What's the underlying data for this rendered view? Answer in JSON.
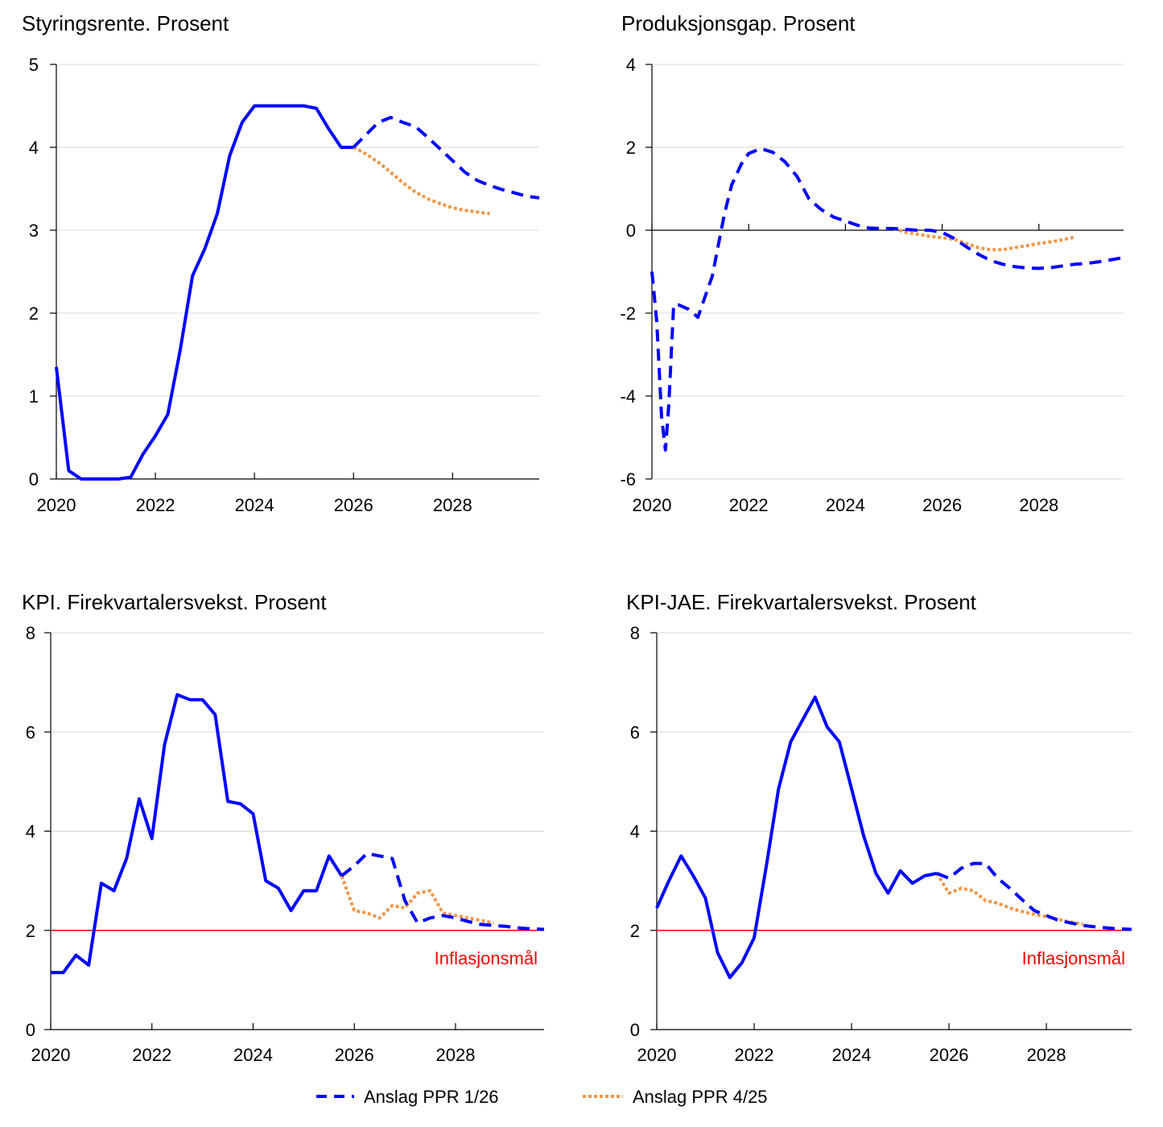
{
  "colors": {
    "actual": "#0000FF",
    "ppr_1_26": "#0000FF",
    "ppr_4_25": "#F0974A",
    "target": "#FF0000",
    "grid": "#D9D9D9"
  },
  "legend": {
    "items": [
      {
        "label": "Anslag PPR 1/26",
        "style": "dashed",
        "color": "#0000FF"
      },
      {
        "label": "Anslag PPR 4/25",
        "style": "dotted",
        "color": "#F0974A"
      }
    ]
  },
  "chart_data": [
    {
      "type": "line",
      "title": "Styringsrente. Prosent",
      "xlabel": "",
      "ylabel": "",
      "xlim": [
        2020,
        2029.75
      ],
      "ylim": [
        0,
        5
      ],
      "yticks": [
        0,
        1,
        2,
        3,
        4,
        5
      ],
      "xticks": [
        2020,
        2022,
        2024,
        2026,
        2028
      ],
      "grid": true,
      "series": [
        {
          "style": "solid",
          "points": [
            [
              2020.0,
              1.35
            ],
            [
              2020.25,
              0.1
            ],
            [
              2020.5,
              0.0
            ],
            [
              2020.75,
              0.0
            ],
            [
              2021.0,
              0.0
            ],
            [
              2021.25,
              0.0
            ],
            [
              2021.5,
              0.02
            ],
            [
              2021.75,
              0.3
            ],
            [
              2022.0,
              0.52
            ],
            [
              2022.25,
              0.78
            ],
            [
              2022.5,
              1.55
            ],
            [
              2022.75,
              2.45
            ],
            [
              2023.0,
              2.78
            ],
            [
              2023.25,
              3.2
            ],
            [
              2023.5,
              3.9
            ],
            [
              2023.75,
              4.3
            ],
            [
              2024.0,
              4.5
            ],
            [
              2024.25,
              4.5
            ],
            [
              2024.5,
              4.5
            ],
            [
              2024.75,
              4.5
            ],
            [
              2025.0,
              4.5
            ],
            [
              2025.25,
              4.47
            ],
            [
              2025.5,
              4.22
            ],
            [
              2025.75,
              4.0
            ],
            [
              2026.0,
              4.0
            ]
          ]
        },
        {
          "style": "dashed",
          "points": [
            [
              2026.0,
              4.0
            ],
            [
              2026.25,
              4.15
            ],
            [
              2026.5,
              4.3
            ],
            [
              2026.75,
              4.36
            ],
            [
              2027.0,
              4.3
            ],
            [
              2027.25,
              4.25
            ],
            [
              2027.5,
              4.12
            ],
            [
              2027.75,
              3.98
            ],
            [
              2028.0,
              3.84
            ],
            [
              2028.25,
              3.7
            ],
            [
              2028.5,
              3.6
            ],
            [
              2028.75,
              3.54
            ],
            [
              2029.0,
              3.49
            ],
            [
              2029.25,
              3.45
            ],
            [
              2029.5,
              3.41
            ],
            [
              2029.75,
              3.39
            ]
          ]
        },
        {
          "style": "dotted",
          "points": [
            [
              2026.0,
              4.0
            ],
            [
              2026.25,
              3.92
            ],
            [
              2026.5,
              3.82
            ],
            [
              2026.75,
              3.7
            ],
            [
              2027.0,
              3.57
            ],
            [
              2027.25,
              3.46
            ],
            [
              2027.5,
              3.38
            ],
            [
              2027.75,
              3.32
            ],
            [
              2028.0,
              3.27
            ],
            [
              2028.25,
              3.24
            ],
            [
              2028.5,
              3.22
            ],
            [
              2028.75,
              3.2
            ]
          ]
        }
      ]
    },
    {
      "type": "line",
      "title": "Produksjonsgap. Prosent",
      "xlabel": "",
      "ylabel": "",
      "xlim": [
        2020,
        2029.75
      ],
      "ylim": [
        -6,
        4
      ],
      "yticks": [
        -6,
        -4,
        -2,
        0,
        2,
        4
      ],
      "xticks": [
        2020,
        2022,
        2024,
        2026,
        2028
      ],
      "grid": true,
      "series": [
        {
          "style": "dashed",
          "points": [
            [
              2020.0,
              -1.0
            ],
            [
              2020.1,
              -2.2
            ],
            [
              2020.2,
              -4.5
            ],
            [
              2020.28,
              -5.3
            ],
            [
              2020.35,
              -4.2
            ],
            [
              2020.45,
              -1.8
            ],
            [
              2020.55,
              -1.8
            ],
            [
              2020.75,
              -1.9
            ],
            [
              2020.95,
              -2.1
            ],
            [
              2021.1,
              -1.6
            ],
            [
              2021.25,
              -1.1
            ],
            [
              2021.4,
              -0.2
            ],
            [
              2021.5,
              0.4
            ],
            [
              2021.65,
              1.1
            ],
            [
              2021.85,
              1.6
            ],
            [
              2022.0,
              1.85
            ],
            [
              2022.25,
              1.97
            ],
            [
              2022.5,
              1.88
            ],
            [
              2022.75,
              1.65
            ],
            [
              2023.0,
              1.3
            ],
            [
              2023.25,
              0.75
            ],
            [
              2023.5,
              0.5
            ],
            [
              2023.75,
              0.32
            ],
            [
              2024.0,
              0.22
            ],
            [
              2024.25,
              0.12
            ],
            [
              2024.5,
              0.05
            ],
            [
              2024.75,
              0.04
            ],
            [
              2025.0,
              0.04
            ],
            [
              2025.25,
              0.02
            ],
            [
              2025.5,
              0.0
            ],
            [
              2025.75,
              0.0
            ],
            [
              2026.0,
              -0.05
            ],
            [
              2026.25,
              -0.2
            ],
            [
              2026.5,
              -0.4
            ],
            [
              2026.75,
              -0.58
            ],
            [
              2027.0,
              -0.73
            ],
            [
              2027.25,
              -0.82
            ],
            [
              2027.5,
              -0.88
            ],
            [
              2027.75,
              -0.91
            ],
            [
              2028.0,
              -0.92
            ],
            [
              2028.25,
              -0.9
            ],
            [
              2028.5,
              -0.86
            ],
            [
              2028.75,
              -0.82
            ],
            [
              2029.0,
              -0.8
            ],
            [
              2029.25,
              -0.76
            ],
            [
              2029.5,
              -0.71
            ],
            [
              2029.75,
              -0.66
            ]
          ]
        },
        {
          "style": "dotted",
          "points": [
            [
              2025.0,
              0.04
            ],
            [
              2025.25,
              -0.05
            ],
            [
              2025.5,
              -0.1
            ],
            [
              2025.75,
              -0.15
            ],
            [
              2026.0,
              -0.18
            ],
            [
              2026.25,
              -0.22
            ],
            [
              2026.5,
              -0.32
            ],
            [
              2026.75,
              -0.42
            ],
            [
              2027.0,
              -0.47
            ],
            [
              2027.25,
              -0.47
            ],
            [
              2027.5,
              -0.42
            ],
            [
              2027.75,
              -0.37
            ],
            [
              2028.0,
              -0.32
            ],
            [
              2028.25,
              -0.28
            ],
            [
              2028.5,
              -0.23
            ],
            [
              2028.75,
              -0.16
            ]
          ]
        }
      ]
    },
    {
      "type": "line",
      "title": "KPI. Firekvartalersvekst. Prosent",
      "xlabel": "",
      "ylabel": "",
      "xlim": [
        2020,
        2029.75
      ],
      "ylim": [
        0,
        8
      ],
      "yticks": [
        0,
        2,
        4,
        6,
        8
      ],
      "xticks": [
        2020,
        2022,
        2024,
        2026,
        2028
      ],
      "grid": true,
      "target": {
        "value": 2,
        "label": "Inflasjonsmål"
      },
      "series": [
        {
          "style": "solid",
          "points": [
            [
              2020.0,
              1.15
            ],
            [
              2020.25,
              1.15
            ],
            [
              2020.5,
              1.5
            ],
            [
              2020.75,
              1.3
            ],
            [
              2021.0,
              2.95
            ],
            [
              2021.25,
              2.8
            ],
            [
              2021.5,
              3.45
            ],
            [
              2021.75,
              4.65
            ],
            [
              2022.0,
              3.85
            ],
            [
              2022.25,
              5.75
            ],
            [
              2022.5,
              6.75
            ],
            [
              2022.75,
              6.65
            ],
            [
              2023.0,
              6.65
            ],
            [
              2023.25,
              6.35
            ],
            [
              2023.5,
              4.6
            ],
            [
              2023.75,
              4.55
            ],
            [
              2024.0,
              4.35
            ],
            [
              2024.25,
              3.0
            ],
            [
              2024.5,
              2.85
            ],
            [
              2024.75,
              2.4
            ],
            [
              2025.0,
              2.8
            ],
            [
              2025.25,
              2.8
            ],
            [
              2025.5,
              3.5
            ],
            [
              2025.75,
              3.1
            ]
          ]
        },
        {
          "style": "dashed",
          "points": [
            [
              2025.75,
              3.1
            ],
            [
              2026.0,
              3.3
            ],
            [
              2026.25,
              3.55
            ],
            [
              2026.5,
              3.5
            ],
            [
              2026.75,
              3.45
            ],
            [
              2027.0,
              2.6
            ],
            [
              2027.25,
              2.15
            ],
            [
              2027.5,
              2.25
            ],
            [
              2027.75,
              2.3
            ],
            [
              2028.0,
              2.25
            ],
            [
              2028.25,
              2.18
            ],
            [
              2028.5,
              2.12
            ],
            [
              2028.75,
              2.1
            ],
            [
              2029.0,
              2.08
            ],
            [
              2029.25,
              2.05
            ],
            [
              2029.5,
              2.03
            ],
            [
              2029.75,
              2.02
            ]
          ]
        },
        {
          "style": "dotted",
          "points": [
            [
              2025.75,
              3.1
            ],
            [
              2026.0,
              2.4
            ],
            [
              2026.25,
              2.35
            ],
            [
              2026.5,
              2.25
            ],
            [
              2026.75,
              2.5
            ],
            [
              2027.0,
              2.45
            ],
            [
              2027.25,
              2.75
            ],
            [
              2027.5,
              2.8
            ],
            [
              2027.75,
              2.35
            ],
            [
              2028.0,
              2.3
            ],
            [
              2028.25,
              2.25
            ],
            [
              2028.5,
              2.2
            ],
            [
              2028.75,
              2.15
            ]
          ]
        }
      ]
    },
    {
      "type": "line",
      "title": "KPI-JAE. Firekvartalersvekst. Prosent",
      "xlabel": "",
      "ylabel": "",
      "xlim": [
        2020,
        2029.75
      ],
      "ylim": [
        0,
        8
      ],
      "yticks": [
        0,
        2,
        4,
        6,
        8
      ],
      "xticks": [
        2020,
        2022,
        2024,
        2026,
        2028
      ],
      "grid": true,
      "target": {
        "value": 2,
        "label": "Inflasjonsmål"
      },
      "series": [
        {
          "style": "solid",
          "points": [
            [
              2020.0,
              2.45
            ],
            [
              2020.25,
              3.0
            ],
            [
              2020.5,
              3.5
            ],
            [
              2020.75,
              3.1
            ],
            [
              2021.0,
              2.65
            ],
            [
              2021.25,
              1.55
            ],
            [
              2021.5,
              1.05
            ],
            [
              2021.75,
              1.35
            ],
            [
              2022.0,
              1.85
            ],
            [
              2022.25,
              3.3
            ],
            [
              2022.5,
              4.85
            ],
            [
              2022.75,
              5.8
            ],
            [
              2023.0,
              6.25
            ],
            [
              2023.25,
              6.7
            ],
            [
              2023.5,
              6.1
            ],
            [
              2023.75,
              5.8
            ],
            [
              2024.0,
              4.85
            ],
            [
              2024.25,
              3.9
            ],
            [
              2024.5,
              3.15
            ],
            [
              2024.75,
              2.75
            ],
            [
              2025.0,
              3.2
            ],
            [
              2025.25,
              2.95
            ],
            [
              2025.5,
              3.1
            ],
            [
              2025.75,
              3.15
            ]
          ]
        },
        {
          "style": "dashed",
          "points": [
            [
              2025.75,
              3.15
            ],
            [
              2026.0,
              3.05
            ],
            [
              2026.25,
              3.25
            ],
            [
              2026.5,
              3.35
            ],
            [
              2026.75,
              3.35
            ],
            [
              2027.0,
              3.05
            ],
            [
              2027.25,
              2.85
            ],
            [
              2027.5,
              2.62
            ],
            [
              2027.75,
              2.4
            ],
            [
              2028.0,
              2.3
            ],
            [
              2028.25,
              2.2
            ],
            [
              2028.5,
              2.15
            ],
            [
              2028.75,
              2.1
            ],
            [
              2029.0,
              2.07
            ],
            [
              2029.25,
              2.05
            ],
            [
              2029.5,
              2.03
            ],
            [
              2029.75,
              2.02
            ]
          ]
        },
        {
          "style": "dotted",
          "points": [
            [
              2025.75,
              3.15
            ],
            [
              2026.0,
              2.75
            ],
            [
              2026.25,
              2.85
            ],
            [
              2026.5,
              2.8
            ],
            [
              2026.75,
              2.6
            ],
            [
              2027.0,
              2.55
            ],
            [
              2027.25,
              2.45
            ],
            [
              2027.5,
              2.38
            ],
            [
              2027.75,
              2.32
            ],
            [
              2028.0,
              2.28
            ],
            [
              2028.25,
              2.22
            ],
            [
              2028.5,
              2.17
            ],
            [
              2028.75,
              2.12
            ]
          ]
        }
      ]
    }
  ]
}
